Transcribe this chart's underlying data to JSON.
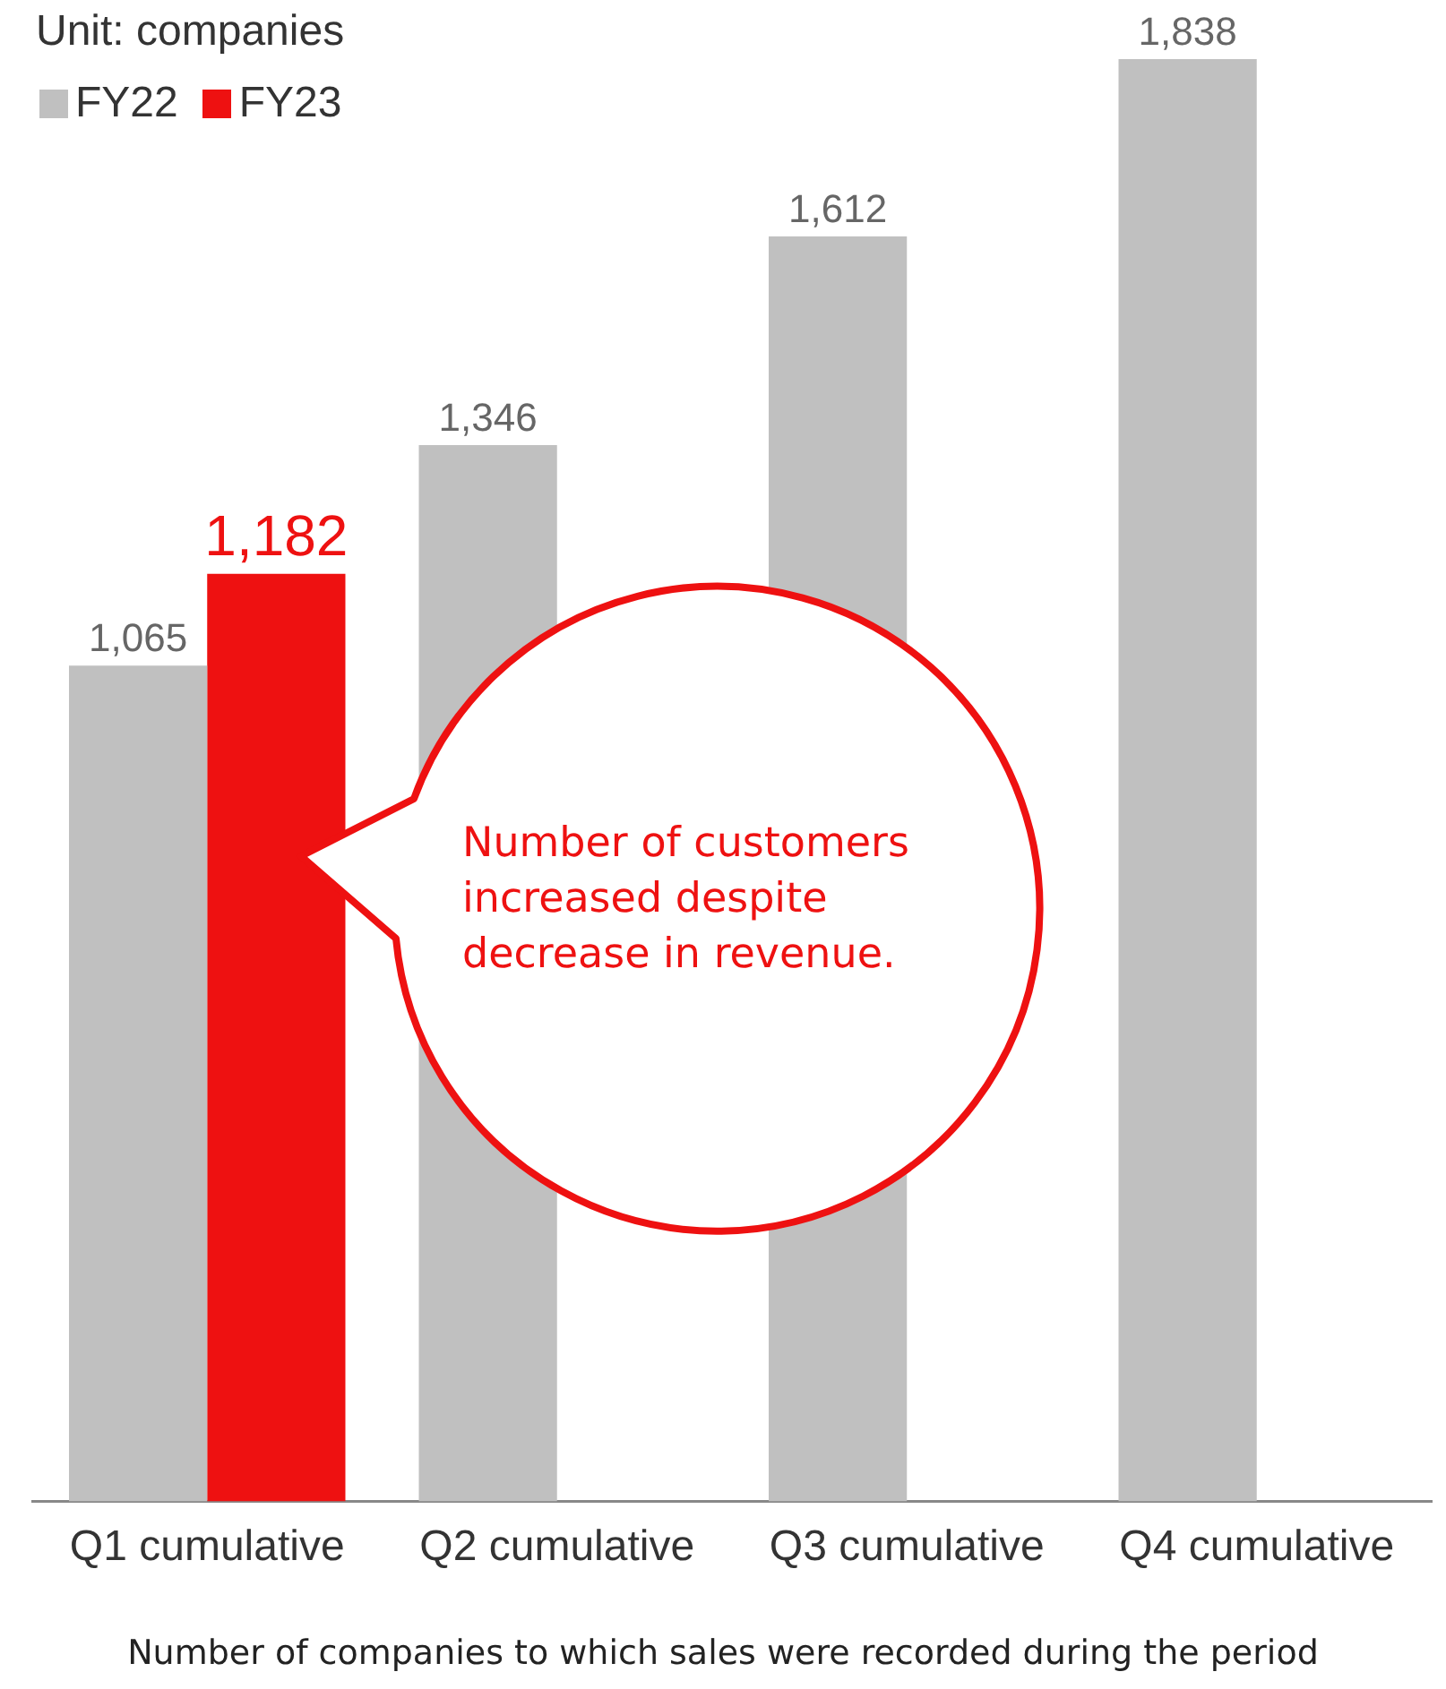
{
  "chart_data": {
    "type": "bar",
    "ylabel": "Unit: companies",
    "categories": [
      "Q1 cumulative",
      "Q2 cumulative",
      "Q3 cumulative",
      "Q4 cumulative"
    ],
    "series": [
      {
        "name": "FY22",
        "color": "#c0c0c0",
        "values": [
          1065,
          1346,
          1612,
          1838
        ],
        "value_labels": [
          "1,065",
          "1,346",
          "1,612",
          "1,838"
        ]
      },
      {
        "name": "FY23",
        "color": "#ee1111",
        "values": [
          1182,
          null,
          null,
          null
        ],
        "value_labels": [
          "1,182",
          null,
          null,
          null
        ]
      }
    ],
    "legend": "top left",
    "grid": false,
    "annotations": [
      "Number of customers increased despite decrease in revenue.",
      "Number of companies to which sales were recorded during the period"
    ]
  }
}
